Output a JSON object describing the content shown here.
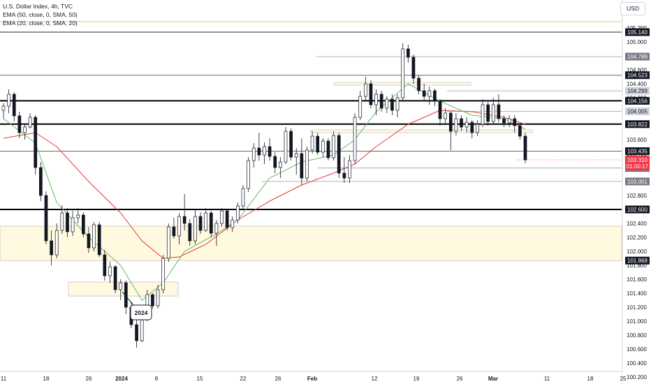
{
  "legend": {
    "symbol": "U.S. Dollar Index, 4h, TVC",
    "ema50": "EMA (50, close, 0, SMA, 50)",
    "ema20": "EMA (20, close, 0, SMA, 20)"
  },
  "currency": "USD",
  "annotation": "2024",
  "colors": {
    "up": "#26a69a",
    "down": "#ef5350",
    "candle": "#131722",
    "ema50": "#e53935",
    "ema20": "#66bb6a",
    "zone_fill": "#fff9e0",
    "zone_stroke": "#b0b0b0",
    "current_price_bg": "#f23645"
  },
  "chart_data": {
    "type": "candlestick",
    "ylim": [
      100.2,
      105.4
    ],
    "price_ticks": [
      "105.200",
      "105.000",
      "104.800",
      "104.600",
      "104.400",
      "104.200",
      "104.000",
      "103.800",
      "103.600",
      "103.400",
      "103.200",
      "103.000",
      "102.800",
      "102.600",
      "102.400",
      "102.200",
      "102.000",
      "101.800",
      "101.600",
      "101.400",
      "101.200",
      "101.000",
      "100.800",
      "100.600",
      "100.400",
      "100.200"
    ],
    "x_ticks": [
      "11",
      "18",
      "26",
      "2024",
      "8",
      "15",
      "22",
      "26",
      "Feb",
      "12",
      "19",
      "26",
      "Mar",
      "11",
      "18",
      "25"
    ],
    "level_labels": [
      {
        "text": "105.140",
        "value": 105.14,
        "style": "dark"
      },
      {
        "text": "104.789",
        "value": 104.789,
        "style": "gray"
      },
      {
        "text": "104.523",
        "value": 104.523,
        "style": "dark"
      },
      {
        "text": "104.299",
        "value": 104.299,
        "style": "light"
      },
      {
        "text": "104.156",
        "value": 104.156,
        "style": "dark"
      },
      {
        "text": "104.005",
        "value": 104.005,
        "style": "light"
      },
      {
        "text": "103.822",
        "value": 103.822,
        "style": "dark"
      },
      {
        "text": "103.435",
        "value": 103.435,
        "style": "dark"
      },
      {
        "text": "103.193",
        "value": 103.193,
        "style": "gray"
      },
      {
        "text": "103.001",
        "value": 103.001,
        "style": "gray"
      },
      {
        "text": "102.600",
        "value": 102.6,
        "style": "dark"
      },
      {
        "text": "101.868",
        "value": 101.868,
        "style": "dark"
      }
    ],
    "current_price": {
      "value": 103.31,
      "text": "103.310",
      "countdown": "01:00:17"
    },
    "horizontal_lines": [
      {
        "value": 105.14,
        "weight": 1.2,
        "color": "#555555"
      },
      {
        "value": 104.523,
        "weight": 1,
        "color": "#666666"
      },
      {
        "value": 104.156,
        "weight": 2,
        "color": "#000000"
      },
      {
        "value": 103.822,
        "weight": 2,
        "color": "#000000"
      },
      {
        "value": 103.435,
        "weight": 1,
        "color": "#666666"
      },
      {
        "value": 102.6,
        "weight": 2,
        "color": "#000000"
      },
      {
        "value": 105.29,
        "weight": 1,
        "color": "#c6d96b"
      }
    ],
    "zones": [
      {
        "top": 102.36,
        "bottom": 101.868
      },
      {
        "top": 101.56,
        "bottom": 101.36
      }
    ],
    "candles": [
      [
        0,
        104.02,
        104.12,
        103.9,
        104.08
      ],
      [
        1,
        104.08,
        104.32,
        103.98,
        104.25
      ],
      [
        2,
        104.25,
        104.28,
        103.86,
        103.94
      ],
      [
        3,
        103.94,
        104.0,
        103.62,
        103.7
      ],
      [
        4,
        103.7,
        103.82,
        103.6,
        103.78
      ],
      [
        5,
        103.78,
        103.98,
        103.76,
        103.92
      ],
      [
        6,
        103.92,
        103.95,
        103.1,
        103.2
      ],
      [
        7,
        103.2,
        103.28,
        102.72,
        102.8
      ],
      [
        8,
        102.8,
        102.86,
        102.1,
        102.15
      ],
      [
        9,
        102.15,
        102.3,
        101.8,
        101.95
      ],
      [
        10,
        101.95,
        102.4,
        101.9,
        102.3
      ],
      [
        11,
        102.3,
        102.66,
        102.25,
        102.55
      ],
      [
        12,
        102.55,
        102.62,
        102.2,
        102.28
      ],
      [
        13,
        102.28,
        102.58,
        102.22,
        102.48
      ],
      [
        14,
        102.48,
        102.62,
        102.4,
        102.52
      ],
      [
        15,
        102.52,
        102.56,
        102.2,
        102.25
      ],
      [
        16,
        102.25,
        102.35,
        101.98,
        102.05
      ],
      [
        17,
        102.05,
        102.42,
        102.0,
        102.38
      ],
      [
        18,
        102.38,
        102.42,
        101.92,
        101.95
      ],
      [
        19,
        101.95,
        102.02,
        101.58,
        101.65
      ],
      [
        20,
        101.65,
        101.85,
        101.55,
        101.78
      ],
      [
        21,
        101.78,
        101.8,
        101.4,
        101.45
      ],
      [
        22,
        101.45,
        101.6,
        101.3,
        101.55
      ],
      [
        23,
        101.55,
        101.58,
        101.1,
        101.2
      ],
      [
        24,
        101.2,
        101.28,
        100.9,
        100.95
      ],
      [
        25,
        100.95,
        101.05,
        100.62,
        100.72
      ],
      [
        26,
        100.72,
        101.15,
        100.7,
        101.08
      ],
      [
        27,
        101.08,
        101.45,
        101.0,
        101.38
      ],
      [
        28,
        101.38,
        101.4,
        101.18,
        101.22
      ],
      [
        29,
        101.22,
        101.52,
        101.18,
        101.45
      ],
      [
        30,
        101.45,
        101.95,
        101.4,
        101.9
      ],
      [
        31,
        101.9,
        102.4,
        101.85,
        102.35
      ],
      [
        32,
        102.35,
        102.48,
        102.18,
        102.22
      ],
      [
        33,
        102.22,
        102.55,
        102.1,
        102.5
      ],
      [
        34,
        102.5,
        102.82,
        102.3,
        102.4
      ],
      [
        35,
        102.4,
        102.46,
        102.08,
        102.15
      ],
      [
        36,
        102.15,
        102.6,
        102.1,
        102.5
      ],
      [
        37,
        102.5,
        102.56,
        102.25,
        102.3
      ],
      [
        38,
        102.3,
        102.62,
        102.28,
        102.55
      ],
      [
        39,
        102.55,
        102.58,
        102.2,
        102.26
      ],
      [
        40,
        102.26,
        102.45,
        102.08,
        102.4
      ],
      [
        41,
        102.4,
        102.62,
        102.36,
        102.58
      ],
      [
        42,
        102.58,
        102.6,
        102.3,
        102.34
      ],
      [
        43,
        102.34,
        102.5,
        102.28,
        102.45
      ],
      [
        44,
        102.45,
        102.7,
        102.4,
        102.65
      ],
      [
        45,
        102.65,
        102.95,
        102.6,
        102.9
      ],
      [
        46,
        102.9,
        103.35,
        102.85,
        103.3
      ],
      [
        47,
        103.3,
        103.55,
        103.2,
        103.48
      ],
      [
        48,
        103.48,
        103.7,
        103.3,
        103.38
      ],
      [
        49,
        103.38,
        103.56,
        103.25,
        103.5
      ],
      [
        50,
        103.5,
        103.62,
        103.3,
        103.36
      ],
      [
        51,
        103.36,
        103.42,
        103.12,
        103.2
      ],
      [
        52,
        103.2,
        103.35,
        103.05,
        103.28
      ],
      [
        53,
        103.28,
        103.78,
        103.25,
        103.72
      ],
      [
        54,
        103.72,
        103.76,
        103.3,
        103.35
      ],
      [
        55,
        103.35,
        103.48,
        103.1,
        103.4
      ],
      [
        56,
        103.4,
        103.62,
        102.95,
        103.05
      ],
      [
        57,
        103.05,
        103.5,
        103.0,
        103.45
      ],
      [
        58,
        103.45,
        103.72,
        103.4,
        103.65
      ],
      [
        59,
        103.65,
        103.7,
        103.38,
        103.42
      ],
      [
        60,
        103.42,
        103.62,
        103.35,
        103.58
      ],
      [
        61,
        103.58,
        103.62,
        103.3,
        103.34
      ],
      [
        62,
        103.34,
        103.72,
        103.3,
        103.66
      ],
      [
        63,
        103.66,
        103.7,
        103.05,
        103.12
      ],
      [
        64,
        103.12,
        103.35,
        102.98,
        103.05
      ],
      [
        65,
        103.05,
        103.38,
        102.98,
        103.3
      ],
      [
        66,
        103.3,
        103.98,
        103.25,
        103.92
      ],
      [
        67,
        103.92,
        104.3,
        103.88,
        104.22
      ],
      [
        68,
        104.22,
        104.5,
        104.15,
        104.4
      ],
      [
        69,
        104.4,
        104.45,
        104.05,
        104.1
      ],
      [
        70,
        104.1,
        104.32,
        103.95,
        104.25
      ],
      [
        71,
        104.25,
        104.3,
        104.0,
        104.05
      ],
      [
        72,
        104.05,
        104.22,
        103.98,
        104.18
      ],
      [
        73,
        104.18,
        104.25,
        103.95,
        104.02
      ],
      [
        74,
        104.02,
        104.25,
        103.92,
        104.2
      ],
      [
        75,
        104.2,
        104.98,
        104.15,
        104.9
      ],
      [
        76,
        104.9,
        104.96,
        104.7,
        104.78
      ],
      [
        77,
        104.78,
        104.82,
        104.4,
        104.48
      ],
      [
        78,
        104.48,
        104.52,
        104.25,
        104.3
      ],
      [
        79,
        104.3,
        104.4,
        104.15,
        104.22
      ],
      [
        80,
        104.22,
        104.36,
        104.1,
        104.3
      ],
      [
        81,
        104.3,
        104.33,
        104.08,
        104.15
      ],
      [
        82,
        104.15,
        104.18,
        103.8,
        103.9
      ],
      [
        83,
        103.9,
        104.05,
        103.82,
        103.98
      ],
      [
        84,
        103.98,
        104.0,
        103.45,
        103.72
      ],
      [
        85,
        103.72,
        103.98,
        103.66,
        103.9
      ],
      [
        86,
        103.9,
        103.95,
        103.72,
        103.78
      ],
      [
        87,
        103.78,
        103.92,
        103.7,
        103.85
      ],
      [
        88,
        103.85,
        103.88,
        103.62,
        103.7
      ],
      [
        89,
        103.7,
        103.88,
        103.65,
        103.82
      ],
      [
        90,
        103.82,
        104.18,
        103.78,
        104.1
      ],
      [
        91,
        104.1,
        104.14,
        103.8,
        103.86
      ],
      [
        92,
        103.86,
        104.2,
        103.82,
        104.1
      ],
      [
        93,
        104.1,
        104.25,
        103.85,
        103.9
      ],
      [
        94,
        103.9,
        103.95,
        103.78,
        103.84
      ],
      [
        95,
        103.84,
        103.95,
        103.78,
        103.9
      ],
      [
        96,
        103.9,
        103.95,
        103.7,
        103.8
      ],
      [
        97,
        103.8,
        103.84,
        103.6,
        103.65
      ],
      [
        98,
        103.65,
        103.7,
        103.26,
        103.31
      ]
    ],
    "ema50": [
      [
        0,
        103.62
      ],
      [
        6,
        103.7
      ],
      [
        10,
        103.5
      ],
      [
        16,
        103.0
      ],
      [
        22,
        102.55
      ],
      [
        26,
        102.15
      ],
      [
        30,
        101.9
      ],
      [
        33,
        101.92
      ],
      [
        38,
        102.1
      ],
      [
        44,
        102.45
      ],
      [
        50,
        102.72
      ],
      [
        56,
        102.95
      ],
      [
        62,
        103.12
      ],
      [
        66,
        103.25
      ],
      [
        70,
        103.5
      ],
      [
        76,
        103.82
      ],
      [
        82,
        104.02
      ],
      [
        88,
        104.0
      ],
      [
        94,
        103.92
      ],
      [
        98,
        103.82
      ]
    ],
    "ema20": [
      [
        0,
        103.9
      ],
      [
        6,
        103.55
      ],
      [
        10,
        102.7
      ],
      [
        16,
        102.2
      ],
      [
        22,
        101.8
      ],
      [
        26,
        101.3
      ],
      [
        30,
        101.55
      ],
      [
        34,
        102.0
      ],
      [
        40,
        102.25
      ],
      [
        44,
        102.45
      ],
      [
        50,
        103.05
      ],
      [
        56,
        103.28
      ],
      [
        62,
        103.38
      ],
      [
        66,
        103.6
      ],
      [
        70,
        104.0
      ],
      [
        76,
        104.4
      ],
      [
        82,
        104.15
      ],
      [
        88,
        103.95
      ],
      [
        94,
        103.9
      ],
      [
        98,
        103.75
      ]
    ]
  }
}
